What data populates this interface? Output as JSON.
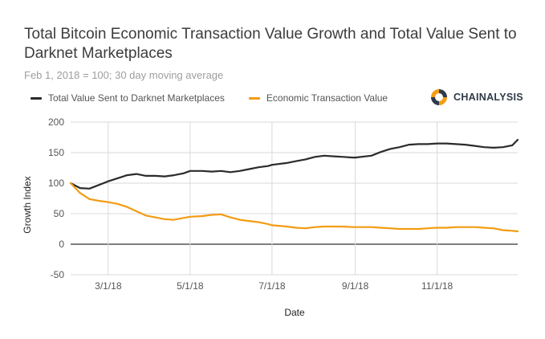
{
  "chart_data": {
    "type": "line",
    "title": "Total Bitcoin Economic Transaction Value Growth and Total Value Sent to Darknet Marketplaces",
    "subtitle": "Feb 1, 2018 = 100; 30 day moving average",
    "xlabel": "Date",
    "ylabel": "Growth Index",
    "ylim": [
      -50,
      200
    ],
    "yticks": [
      -50,
      0,
      50,
      100,
      150,
      200
    ],
    "xticks": [
      "3/1/18",
      "5/1/18",
      "7/1/18",
      "9/1/18",
      "11/1/18"
    ],
    "xrange": [
      "2/1/18",
      "12/31/18"
    ],
    "grid": true,
    "legend_position": "top-left",
    "series": [
      {
        "name": "Total Value Sent to Darknet Marketplaces",
        "color": "#2b2b2b",
        "x": [
          "2/1/18",
          "2/8/18",
          "2/15/18",
          "2/22/18",
          "3/1/18",
          "3/8/18",
          "3/15/18",
          "3/22/18",
          "3/29/18",
          "4/5/18",
          "4/12/18",
          "4/19/18",
          "4/26/18",
          "5/1/18",
          "5/10/18",
          "5/17/18",
          "5/24/18",
          "5/31/18",
          "6/7/18",
          "6/14/18",
          "6/21/18",
          "6/28/18",
          "7/1/18",
          "7/12/18",
          "7/19/18",
          "7/26/18",
          "8/2/18",
          "8/9/18",
          "8/16/18",
          "8/23/18",
          "8/30/18",
          "9/1/18",
          "9/13/18",
          "9/20/18",
          "9/27/18",
          "10/4/18",
          "10/11/18",
          "10/18/18",
          "10/25/18",
          "11/1/18",
          "11/8/18",
          "11/15/18",
          "11/22/18",
          "11/29/18",
          "12/6/18",
          "12/13/18",
          "12/20/18",
          "12/27/18",
          "12/31/18"
        ],
        "values": [
          100,
          92,
          91,
          97,
          103,
          108,
          113,
          115,
          112,
          112,
          111,
          113,
          116,
          120,
          120,
          119,
          120,
          118,
          120,
          123,
          126,
          128,
          130,
          133,
          136,
          139,
          143,
          145,
          144,
          143,
          142,
          142,
          145,
          151,
          156,
          159,
          163,
          164,
          164,
          165,
          165,
          164,
          163,
          161,
          159,
          158,
          159,
          162,
          171
        ]
      },
      {
        "name": "Economic Transaction Value",
        "color": "#f39c12",
        "x": [
          "2/1/18",
          "2/8/18",
          "2/15/18",
          "2/22/18",
          "3/1/18",
          "3/8/18",
          "3/15/18",
          "3/22/18",
          "3/29/18",
          "4/5/18",
          "4/12/18",
          "4/19/18",
          "4/26/18",
          "5/1/18",
          "5/10/18",
          "5/17/18",
          "5/24/18",
          "5/31/18",
          "6/7/18",
          "6/14/18",
          "6/21/18",
          "6/28/18",
          "7/1/18",
          "7/12/18",
          "7/19/18",
          "7/26/18",
          "8/2/18",
          "8/9/18",
          "8/16/18",
          "8/23/18",
          "8/30/18",
          "9/1/18",
          "9/13/18",
          "9/20/18",
          "9/27/18",
          "10/4/18",
          "10/11/18",
          "10/18/18",
          "10/25/18",
          "11/1/18",
          "11/8/18",
          "11/15/18",
          "11/22/18",
          "11/29/18",
          "12/6/18",
          "12/13/18",
          "12/20/18",
          "12/27/18",
          "12/31/18"
        ],
        "values": [
          100,
          84,
          74,
          71,
          69,
          66,
          61,
          54,
          47,
          44,
          41,
          40,
          43,
          45,
          46,
          48,
          49,
          44,
          40,
          38,
          36,
          33,
          31,
          29,
          27,
          26,
          28,
          29,
          29,
          29,
          28,
          28,
          28,
          27,
          26,
          25,
          25,
          25,
          26,
          27,
          27,
          28,
          28,
          28,
          27,
          26,
          23,
          22,
          21
        ]
      }
    ]
  },
  "logo": {
    "text": "CHAINALYSIS",
    "icon": "chainalysis-logo-icon",
    "colors": [
      "#f39c12",
      "#2e3a4a"
    ]
  }
}
